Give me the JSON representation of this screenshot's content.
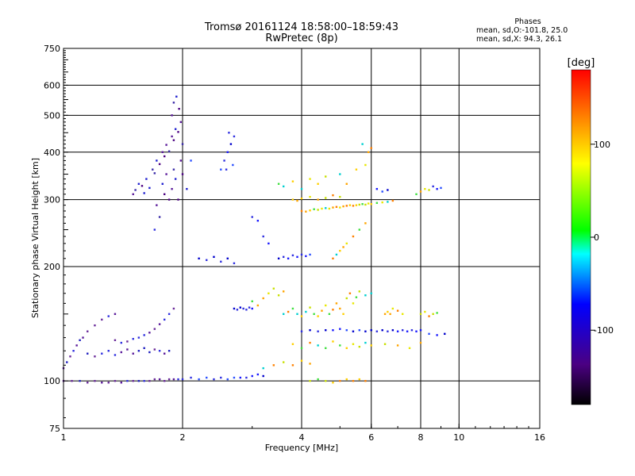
{
  "header": {
    "title_line1": "Tromsø 20161124 18:58:00–18:59:43",
    "title_line2": "RwPretec (8p)"
  },
  "stats": {
    "heading": "Phases",
    "line1": "mean, sd,O:-101.8, 25.0",
    "line2": "mean, sd,X: 94.3, 26.1"
  },
  "chart_data": {
    "type": "scatter",
    "title": "Tromsø 20161124 18:58:00–18:59:43",
    "subtitle": "RwPretec (8p)",
    "xlabel": "Frequency [MHz]",
    "ylabel": "Stationary phase Virtual Height [km]",
    "x_scale": "log",
    "y_scale": "log",
    "xlim": [
      1,
      16
    ],
    "ylim": [
      75,
      750
    ],
    "x_ticks": [
      1,
      2,
      4,
      6,
      8,
      10,
      16
    ],
    "x_tick_labels": [
      "1",
      "2",
      "4",
      "6",
      "8",
      "10",
      "16"
    ],
    "y_ticks": [
      75,
      100,
      200,
      300,
      400,
      500,
      600,
      750
    ],
    "y_tick_labels": [
      "75",
      "100",
      "200",
      "300",
      "400",
      "500",
      "600",
      "750"
    ],
    "grid": true,
    "colorbar": {
      "label": "[deg]",
      "range": [
        -180,
        180
      ],
      "ticks": [
        100,
        0,
        -100
      ],
      "tick_labels": [
        "100",
        "0",
        "-100"
      ],
      "stops": [
        "#000000",
        "#4b0082",
        "#0000ff",
        "#00ffff",
        "#00ff00",
        "#ffff00",
        "#ffa500",
        "#ff0000"
      ]
    },
    "series": [
      {
        "name": "O",
        "points": [
          [
            1.0,
            100
          ],
          [
            1.05,
            100
          ],
          [
            1.1,
            100
          ],
          [
            1.15,
            99
          ],
          [
            1.2,
            100
          ],
          [
            1.25,
            99
          ],
          [
            1.3,
            99
          ],
          [
            1.35,
            100
          ],
          [
            1.4,
            99
          ],
          [
            1.45,
            100
          ],
          [
            1.5,
            100
          ],
          [
            1.55,
            100
          ],
          [
            1.6,
            100
          ],
          [
            1.65,
            100
          ],
          [
            1.7,
            101
          ],
          [
            1.75,
            101
          ],
          [
            1.8,
            100
          ],
          [
            1.85,
            101
          ],
          [
            1.9,
            101
          ],
          [
            1.95,
            101
          ],
          [
            2.0,
            101
          ],
          [
            2.1,
            102
          ],
          [
            2.2,
            101
          ],
          [
            2.3,
            102
          ],
          [
            2.4,
            101
          ],
          [
            2.5,
            102
          ],
          [
            2.6,
            101
          ],
          [
            2.7,
            102
          ],
          [
            2.8,
            102
          ],
          [
            2.9,
            102
          ],
          [
            3.0,
            103
          ],
          [
            3.1,
            104
          ],
          [
            3.2,
            103
          ],
          [
            1.0,
            108
          ],
          [
            1.02,
            112
          ],
          [
            1.04,
            116
          ],
          [
            1.06,
            120
          ],
          [
            1.08,
            124
          ],
          [
            1.1,
            128
          ],
          [
            1.12,
            130
          ],
          [
            1.15,
            135
          ],
          [
            1.2,
            140
          ],
          [
            1.25,
            145
          ],
          [
            1.3,
            148
          ],
          [
            1.35,
            150
          ],
          [
            1.15,
            118
          ],
          [
            1.2,
            116
          ],
          [
            1.25,
            118
          ],
          [
            1.3,
            120
          ],
          [
            1.35,
            117
          ],
          [
            1.4,
            119
          ],
          [
            1.45,
            121
          ],
          [
            1.5,
            118
          ],
          [
            1.55,
            120
          ],
          [
            1.6,
            122
          ],
          [
            1.65,
            119
          ],
          [
            1.7,
            121
          ],
          [
            1.75,
            120
          ],
          [
            1.8,
            118
          ],
          [
            1.85,
            120
          ],
          [
            1.35,
            128
          ],
          [
            1.4,
            126
          ],
          [
            1.45,
            127
          ],
          [
            1.5,
            129
          ],
          [
            1.55,
            130
          ],
          [
            1.6,
            132
          ],
          [
            1.65,
            134
          ],
          [
            1.7,
            137
          ],
          [
            1.75,
            141
          ],
          [
            1.8,
            145
          ],
          [
            1.85,
            150
          ],
          [
            1.9,
            155
          ],
          [
            1.5,
            310
          ],
          [
            1.52,
            318
          ],
          [
            1.55,
            330
          ],
          [
            1.58,
            326
          ],
          [
            1.6,
            312
          ],
          [
            1.62,
            340
          ],
          [
            1.65,
            322
          ],
          [
            1.68,
            360
          ],
          [
            1.7,
            352
          ],
          [
            1.72,
            380
          ],
          [
            1.75,
            372
          ],
          [
            1.78,
            400
          ],
          [
            1.8,
            390
          ],
          [
            1.82,
            418
          ],
          [
            1.85,
            402
          ],
          [
            1.88,
            440
          ],
          [
            1.9,
            430
          ],
          [
            1.92,
            460
          ],
          [
            1.95,
            452
          ],
          [
            1.98,
            480
          ],
          [
            1.7,
            250
          ],
          [
            1.72,
            290
          ],
          [
            1.75,
            270
          ],
          [
            1.78,
            330
          ],
          [
            1.8,
            310
          ],
          [
            1.82,
            350
          ],
          [
            1.85,
            300
          ],
          [
            1.88,
            320
          ],
          [
            1.9,
            360
          ],
          [
            1.92,
            340
          ],
          [
            1.95,
            300
          ],
          [
            1.98,
            380
          ],
          [
            2.0,
            350
          ],
          [
            2.05,
            320
          ],
          [
            2.1,
            380
          ],
          [
            2.0,
            420
          ],
          [
            1.96,
            520
          ],
          [
            1.93,
            560
          ],
          [
            1.9,
            540
          ],
          [
            1.88,
            500
          ],
          [
            2.5,
            360
          ],
          [
            2.55,
            380
          ],
          [
            2.6,
            400
          ],
          [
            2.65,
            420
          ],
          [
            2.7,
            440
          ],
          [
            2.58,
            360
          ],
          [
            2.62,
            450
          ],
          [
            2.68,
            370
          ],
          [
            3.5,
            210
          ],
          [
            3.6,
            212
          ],
          [
            3.7,
            210
          ],
          [
            3.8,
            214
          ],
          [
            3.9,
            212
          ],
          [
            4.0,
            215
          ],
          [
            4.1,
            213
          ],
          [
            4.2,
            215
          ],
          [
            4.0,
            135
          ],
          [
            4.2,
            136
          ],
          [
            4.4,
            135
          ],
          [
            4.6,
            136
          ],
          [
            4.8,
            136
          ],
          [
            5.0,
            137
          ],
          [
            5.2,
            136
          ],
          [
            5.4,
            135
          ],
          [
            5.6,
            136
          ],
          [
            5.8,
            135
          ],
          [
            6.0,
            136
          ],
          [
            6.2,
            135
          ],
          [
            6.4,
            136
          ],
          [
            6.6,
            135
          ],
          [
            6.8,
            136
          ],
          [
            7.0,
            135
          ],
          [
            7.2,
            136
          ],
          [
            7.4,
            135
          ],
          [
            7.6,
            136
          ],
          [
            7.8,
            135
          ],
          [
            8.0,
            136
          ],
          [
            8.4,
            133
          ],
          [
            8.8,
            132
          ],
          [
            9.2,
            133
          ],
          [
            2.7,
            155
          ],
          [
            2.75,
            154
          ],
          [
            2.8,
            156
          ],
          [
            2.85,
            155
          ],
          [
            2.9,
            154
          ],
          [
            2.95,
            156
          ],
          [
            3.0,
            155
          ],
          [
            2.2,
            210
          ],
          [
            2.3,
            208
          ],
          [
            2.4,
            212
          ],
          [
            2.5,
            206
          ],
          [
            2.6,
            210
          ],
          [
            2.7,
            204
          ],
          [
            3.0,
            270
          ],
          [
            3.1,
            264
          ],
          [
            3.2,
            240
          ],
          [
            3.3,
            230
          ],
          [
            6.2,
            320
          ],
          [
            6.4,
            315
          ],
          [
            6.6,
            318
          ],
          [
            8.6,
            325
          ],
          [
            8.8,
            320
          ],
          [
            9.0,
            322
          ]
        ]
      },
      {
        "name": "X",
        "points": [
          [
            4.0,
            280
          ],
          [
            4.1,
            279
          ],
          [
            4.2,
            281
          ],
          [
            4.3,
            283
          ],
          [
            4.4,
            282
          ],
          [
            4.5,
            284
          ],
          [
            4.6,
            285
          ],
          [
            4.7,
            284
          ],
          [
            4.8,
            286
          ],
          [
            4.9,
            287
          ],
          [
            5.0,
            286
          ],
          [
            5.1,
            288
          ],
          [
            5.2,
            289
          ],
          [
            5.3,
            290
          ],
          [
            5.4,
            289
          ],
          [
            5.5,
            290
          ],
          [
            5.6,
            291
          ],
          [
            5.7,
            292
          ],
          [
            5.8,
            291
          ],
          [
            5.9,
            293
          ],
          [
            6.0,
            292
          ],
          [
            6.2,
            294
          ],
          [
            6.4,
            295
          ],
          [
            6.6,
            296
          ],
          [
            6.8,
            298
          ],
          [
            3.8,
            300
          ],
          [
            3.9,
            298
          ],
          [
            4.0,
            302
          ],
          [
            4.2,
            305
          ],
          [
            4.4,
            300
          ],
          [
            4.6,
            303
          ],
          [
            4.8,
            308
          ],
          [
            5.0,
            305
          ],
          [
            3.5,
            330
          ],
          [
            3.6,
            325
          ],
          [
            3.8,
            335
          ],
          [
            4.0,
            320
          ],
          [
            4.2,
            340
          ],
          [
            4.4,
            330
          ],
          [
            4.6,
            345
          ],
          [
            5.0,
            350
          ],
          [
            5.2,
            330
          ],
          [
            5.5,
            360
          ],
          [
            5.8,
            370
          ],
          [
            5.9,
            400
          ],
          [
            6.0,
            410
          ],
          [
            5.7,
            420
          ],
          [
            3.6,
            150
          ],
          [
            3.7,
            152
          ],
          [
            3.8,
            155
          ],
          [
            3.9,
            150
          ],
          [
            4.0,
            148
          ],
          [
            4.1,
            152
          ],
          [
            4.2,
            156
          ],
          [
            4.3,
            150
          ],
          [
            4.4,
            148
          ],
          [
            4.5,
            153
          ],
          [
            4.6,
            158
          ],
          [
            4.7,
            150
          ],
          [
            4.8,
            154
          ],
          [
            4.9,
            160
          ],
          [
            5.0,
            155
          ],
          [
            5.1,
            150
          ],
          [
            5.2,
            165
          ],
          [
            5.3,
            170
          ],
          [
            5.4,
            160
          ],
          [
            5.5,
            166
          ],
          [
            5.6,
            172
          ],
          [
            5.8,
            168
          ],
          [
            6.0,
            170
          ],
          [
            3.8,
            125
          ],
          [
            4.0,
            122
          ],
          [
            4.2,
            126
          ],
          [
            4.4,
            124
          ],
          [
            4.6,
            122
          ],
          [
            4.8,
            127
          ],
          [
            5.0,
            124
          ],
          [
            5.2,
            122
          ],
          [
            5.4,
            125
          ],
          [
            5.6,
            123
          ],
          [
            5.8,
            126
          ],
          [
            6.0,
            124
          ],
          [
            6.5,
            125
          ],
          [
            7.0,
            124
          ],
          [
            7.5,
            122
          ],
          [
            8.0,
            126
          ],
          [
            3.0,
            162
          ],
          [
            3.1,
            158
          ],
          [
            3.2,
            165
          ],
          [
            3.3,
            170
          ],
          [
            3.4,
            175
          ],
          [
            3.5,
            168
          ],
          [
            3.6,
            172
          ],
          [
            4.2,
            100
          ],
          [
            4.4,
            101
          ],
          [
            4.6,
            100
          ],
          [
            4.8,
            99
          ],
          [
            5.0,
            100
          ],
          [
            5.2,
            101
          ],
          [
            5.4,
            100
          ],
          [
            5.6,
            101
          ],
          [
            5.8,
            100
          ],
          [
            3.2,
            108
          ],
          [
            3.4,
            110
          ],
          [
            3.6,
            112
          ],
          [
            3.8,
            110
          ],
          [
            4.0,
            113
          ],
          [
            4.2,
            111
          ],
          [
            4.8,
            210
          ],
          [
            4.9,
            215
          ],
          [
            5.0,
            220
          ],
          [
            5.1,
            225
          ],
          [
            5.2,
            230
          ],
          [
            5.4,
            240
          ],
          [
            5.6,
            250
          ],
          [
            5.8,
            260
          ],
          [
            6.5,
            150
          ],
          [
            6.6,
            152
          ],
          [
            6.7,
            150
          ],
          [
            6.8,
            155
          ],
          [
            7.0,
            153
          ],
          [
            7.2,
            150
          ],
          [
            8.0,
            150
          ],
          [
            8.2,
            152
          ],
          [
            8.4,
            148
          ],
          [
            8.6,
            150
          ],
          [
            8.8,
            151
          ],
          [
            7.8,
            310
          ],
          [
            8.0,
            315
          ],
          [
            8.2,
            320
          ],
          [
            8.4,
            318
          ]
        ]
      }
    ]
  }
}
